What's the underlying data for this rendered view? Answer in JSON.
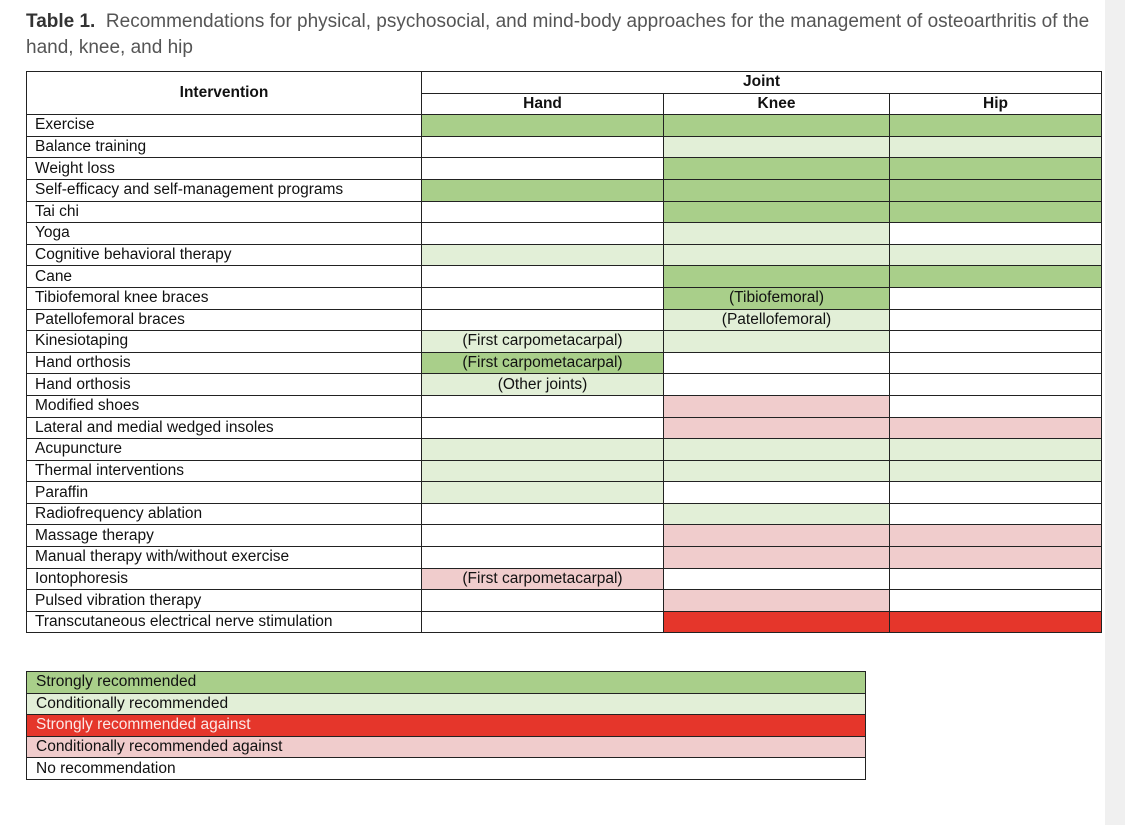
{
  "caption": {
    "label": "Table 1.",
    "text": "Recommendations for physical, psychosocial, and mind-body approaches for the management of osteoarthritis of the hand, knee, and hip"
  },
  "colors": {
    "strong_for": "#a9cf8a",
    "conditional_for": "#e2efd7",
    "strong_against": "#e5362b",
    "conditional_against": "#f0cccc",
    "none": "#ffffff"
  },
  "header": {
    "intervention": "Intervention",
    "joint": "Joint",
    "columns": [
      "Hand",
      "Knee",
      "Hip"
    ]
  },
  "rows": [
    {
      "name": "Exercise",
      "cells": [
        {
          "rec": "sg",
          "note": ""
        },
        {
          "rec": "sg",
          "note": ""
        },
        {
          "rec": "sg",
          "note": ""
        }
      ]
    },
    {
      "name": "Balance training",
      "cells": [
        {
          "rec": "none",
          "note": ""
        },
        {
          "rec": "cg",
          "note": ""
        },
        {
          "rec": "cg",
          "note": ""
        }
      ]
    },
    {
      "name": "Weight loss",
      "cells": [
        {
          "rec": "none",
          "note": ""
        },
        {
          "rec": "sg",
          "note": ""
        },
        {
          "rec": "sg",
          "note": ""
        }
      ]
    },
    {
      "name": "Self-efficacy and self-management programs",
      "cells": [
        {
          "rec": "sg",
          "note": ""
        },
        {
          "rec": "sg",
          "note": ""
        },
        {
          "rec": "sg",
          "note": ""
        }
      ]
    },
    {
      "name": "Tai chi",
      "cells": [
        {
          "rec": "none",
          "note": ""
        },
        {
          "rec": "sg",
          "note": ""
        },
        {
          "rec": "sg",
          "note": ""
        }
      ]
    },
    {
      "name": "Yoga",
      "cells": [
        {
          "rec": "none",
          "note": ""
        },
        {
          "rec": "cg",
          "note": ""
        },
        {
          "rec": "none",
          "note": ""
        }
      ]
    },
    {
      "name": "Cognitive behavioral therapy",
      "cells": [
        {
          "rec": "cg",
          "note": ""
        },
        {
          "rec": "cg",
          "note": ""
        },
        {
          "rec": "cg",
          "note": ""
        }
      ]
    },
    {
      "name": "Cane",
      "cells": [
        {
          "rec": "none",
          "note": ""
        },
        {
          "rec": "sg",
          "note": ""
        },
        {
          "rec": "sg",
          "note": ""
        }
      ]
    },
    {
      "name": "Tibiofemoral knee braces",
      "cells": [
        {
          "rec": "none",
          "note": ""
        },
        {
          "rec": "sg",
          "note": "(Tibiofemoral)"
        },
        {
          "rec": "none",
          "note": ""
        }
      ]
    },
    {
      "name": "Patellofemoral braces",
      "cells": [
        {
          "rec": "none",
          "note": ""
        },
        {
          "rec": "cg",
          "note": "(Patellofemoral)"
        },
        {
          "rec": "none",
          "note": ""
        }
      ]
    },
    {
      "name": "Kinesiotaping",
      "cells": [
        {
          "rec": "cg",
          "note": "(First carpometacarpal)"
        },
        {
          "rec": "cg",
          "note": ""
        },
        {
          "rec": "none",
          "note": ""
        }
      ]
    },
    {
      "name": "Hand orthosis",
      "cells": [
        {
          "rec": "sg",
          "note": "(First carpometacarpal)"
        },
        {
          "rec": "none",
          "note": ""
        },
        {
          "rec": "none",
          "note": ""
        }
      ]
    },
    {
      "name": "Hand orthosis",
      "cells": [
        {
          "rec": "cg",
          "note": "(Other joints)"
        },
        {
          "rec": "none",
          "note": ""
        },
        {
          "rec": "none",
          "note": ""
        }
      ]
    },
    {
      "name": "Modified shoes",
      "cells": [
        {
          "rec": "none",
          "note": ""
        },
        {
          "rec": "ca",
          "note": ""
        },
        {
          "rec": "none",
          "note": ""
        }
      ]
    },
    {
      "name": "Lateral and medial wedged insoles",
      "cells": [
        {
          "rec": "none",
          "note": ""
        },
        {
          "rec": "ca",
          "note": ""
        },
        {
          "rec": "ca",
          "note": ""
        }
      ]
    },
    {
      "name": "Acupuncture",
      "cells": [
        {
          "rec": "cg",
          "note": ""
        },
        {
          "rec": "cg",
          "note": ""
        },
        {
          "rec": "cg",
          "note": ""
        }
      ]
    },
    {
      "name": "Thermal interventions",
      "cells": [
        {
          "rec": "cg",
          "note": ""
        },
        {
          "rec": "cg",
          "note": ""
        },
        {
          "rec": "cg",
          "note": ""
        }
      ]
    },
    {
      "name": "Paraffin",
      "cells": [
        {
          "rec": "cg",
          "note": ""
        },
        {
          "rec": "none",
          "note": ""
        },
        {
          "rec": "none",
          "note": ""
        }
      ]
    },
    {
      "name": "Radiofrequency ablation",
      "cells": [
        {
          "rec": "none",
          "note": ""
        },
        {
          "rec": "cg",
          "note": ""
        },
        {
          "rec": "none",
          "note": ""
        }
      ]
    },
    {
      "name": "Massage therapy",
      "cells": [
        {
          "rec": "none",
          "note": ""
        },
        {
          "rec": "ca",
          "note": ""
        },
        {
          "rec": "ca",
          "note": ""
        }
      ]
    },
    {
      "name": "Manual therapy with/without exercise",
      "cells": [
        {
          "rec": "none",
          "note": ""
        },
        {
          "rec": "ca",
          "note": ""
        },
        {
          "rec": "ca",
          "note": ""
        }
      ]
    },
    {
      "name": "Iontophoresis",
      "cells": [
        {
          "rec": "ca",
          "note": "(First carpometacarpal)"
        },
        {
          "rec": "none",
          "note": ""
        },
        {
          "rec": "none",
          "note": ""
        }
      ]
    },
    {
      "name": "Pulsed vibration therapy",
      "cells": [
        {
          "rec": "none",
          "note": ""
        },
        {
          "rec": "ca",
          "note": ""
        },
        {
          "rec": "none",
          "note": ""
        }
      ]
    },
    {
      "name": "Transcutaneous electrical nerve stimulation",
      "cells": [
        {
          "rec": "none",
          "note": ""
        },
        {
          "rec": "sa",
          "note": ""
        },
        {
          "rec": "sa",
          "note": ""
        }
      ]
    }
  ],
  "legend": [
    {
      "rec": "sg",
      "label": "Strongly recommended"
    },
    {
      "rec": "cg",
      "label": "Conditionally recommended"
    },
    {
      "rec": "sa",
      "label": "Strongly recommended against"
    },
    {
      "rec": "ca",
      "label": "Conditionally recommended against"
    },
    {
      "rec": "none",
      "label": "No recommendation"
    }
  ]
}
